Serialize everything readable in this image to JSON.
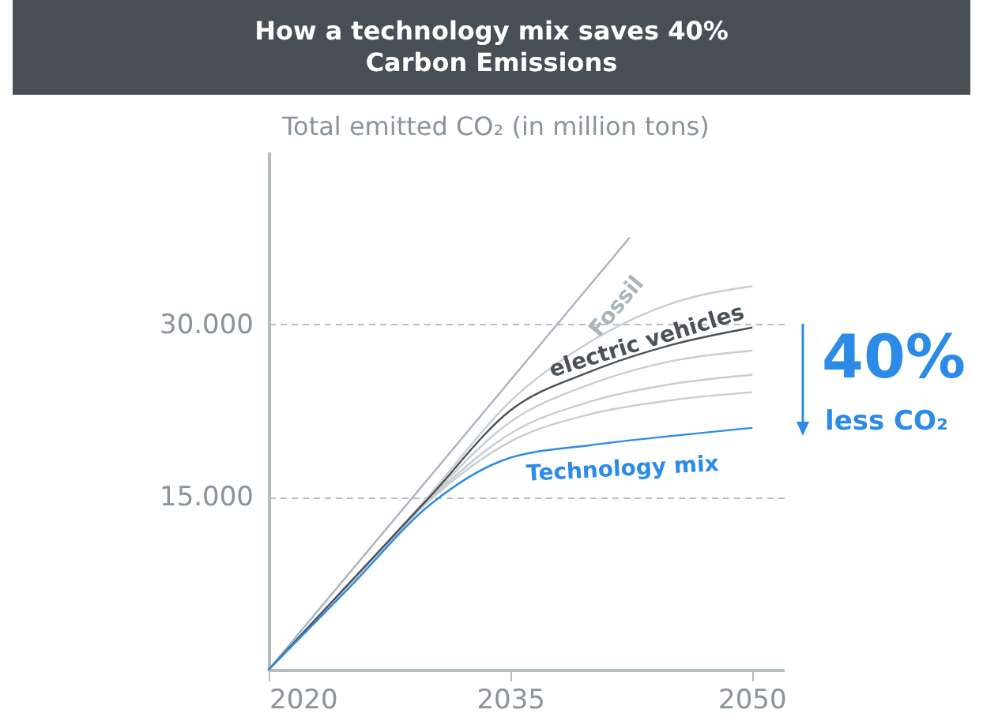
{
  "chart_data": {
    "type": "line",
    "title": "How a technology mix saves 40% Carbon Emissions",
    "ylabel": "Total emitted CO₂ (in million tons)",
    "x": [
      2020,
      2025,
      2030,
      2035,
      2040,
      2045,
      2050
    ],
    "series": [
      {
        "color": "#c8cdd1",
        "values": [
          0,
          7400,
          15200,
          23300,
          28500,
          31800,
          33300
        ]
      },
      {
        "color": "#c8cdd1",
        "values": [
          0,
          7300,
          14900,
          21500,
          24800,
          26800,
          27700
        ]
      },
      {
        "color": "#c8cdd1",
        "values": [
          0,
          7300,
          14800,
          20500,
          23300,
          24800,
          25600
        ]
      },
      {
        "color": "#c8cdd1",
        "values": [
          0,
          7300,
          14700,
          19800,
          22200,
          23400,
          24100
        ]
      },
      {
        "name": "Fossil",
        "color": "#a9b4bc",
        "x": [
          2020,
          2042.4
        ],
        "values": [
          0,
          37500
        ]
      },
      {
        "name": "electric vehicles",
        "color": "#4a5258",
        "values": [
          0,
          7500,
          15000,
          22500,
          25900,
          28200,
          29700
        ]
      },
      {
        "name": "Technology mix",
        "color": "#2b8be6",
        "values": [
          0,
          7100,
          14300,
          18400,
          19500,
          20300,
          21000
        ]
      }
    ],
    "xlim": [
      2020,
      2052
    ],
    "xticks": [
      2020,
      2035,
      2050
    ],
    "ylim": [
      0,
      45000
    ],
    "yticks": [
      {
        "value": 15000,
        "label": "15.000"
      },
      {
        "value": 30000,
        "label": "30.000"
      }
    ],
    "grid": "y",
    "line_style": "solid",
    "annotations": [
      "40%",
      "less CO₂"
    ]
  }
}
